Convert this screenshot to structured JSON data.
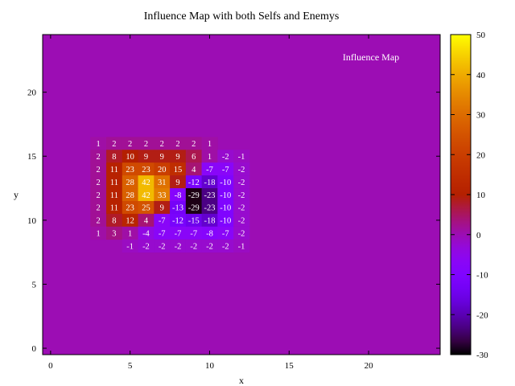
{
  "chart_data": {
    "type": "heatmap",
    "title": "Influence Map with both Selfs and Enemys",
    "xlabel": "x",
    "ylabel": "y",
    "legend_label": "Influence Map",
    "legend_position": "top-right",
    "xlim": [
      -0.5,
      24.5
    ],
    "ylim": [
      -0.5,
      24.5
    ],
    "xticks": [
      0,
      5,
      10,
      15,
      20
    ],
    "yticks": [
      0,
      5,
      10,
      15,
      20
    ],
    "colorbar": {
      "min": -30,
      "max": 50,
      "ticks": [
        50,
        40,
        30,
        20,
        10,
        0,
        -10,
        -20,
        -30
      ]
    },
    "grid": false,
    "background_value": 0,
    "cells": [
      {
        "x": 3,
        "y": 16,
        "v": 1
      },
      {
        "x": 4,
        "y": 16,
        "v": 2
      },
      {
        "x": 5,
        "y": 16,
        "v": 2
      },
      {
        "x": 6,
        "y": 16,
        "v": 2
      },
      {
        "x": 7,
        "y": 16,
        "v": 2
      },
      {
        "x": 8,
        "y": 16,
        "v": 2
      },
      {
        "x": 9,
        "y": 16,
        "v": 2
      },
      {
        "x": 10,
        "y": 16,
        "v": 1
      },
      {
        "x": 3,
        "y": 15,
        "v": 2
      },
      {
        "x": 4,
        "y": 15,
        "v": 8
      },
      {
        "x": 5,
        "y": 15,
        "v": 10
      },
      {
        "x": 6,
        "y": 15,
        "v": 9
      },
      {
        "x": 7,
        "y": 15,
        "v": 9
      },
      {
        "x": 8,
        "y": 15,
        "v": 9
      },
      {
        "x": 9,
        "y": 15,
        "v": 6
      },
      {
        "x": 10,
        "y": 15,
        "v": 1
      },
      {
        "x": 11,
        "y": 15,
        "v": -2
      },
      {
        "x": 12,
        "y": 15,
        "v": -1
      },
      {
        "x": 3,
        "y": 14,
        "v": 2
      },
      {
        "x": 4,
        "y": 14,
        "v": 11
      },
      {
        "x": 5,
        "y": 14,
        "v": 23
      },
      {
        "x": 6,
        "y": 14,
        "v": 23
      },
      {
        "x": 7,
        "y": 14,
        "v": 20
      },
      {
        "x": 8,
        "y": 14,
        "v": 15
      },
      {
        "x": 9,
        "y": 14,
        "v": 4
      },
      {
        "x": 10,
        "y": 14,
        "v": -7
      },
      {
        "x": 11,
        "y": 14,
        "v": -7
      },
      {
        "x": 12,
        "y": 14,
        "v": -2
      },
      {
        "x": 3,
        "y": 13,
        "v": 2
      },
      {
        "x": 4,
        "y": 13,
        "v": 11
      },
      {
        "x": 5,
        "y": 13,
        "v": 28
      },
      {
        "x": 6,
        "y": 13,
        "v": 42
      },
      {
        "x": 7,
        "y": 13,
        "v": 31
      },
      {
        "x": 8,
        "y": 13,
        "v": 9
      },
      {
        "x": 9,
        "y": 13,
        "v": -12
      },
      {
        "x": 10,
        "y": 13,
        "v": -18
      },
      {
        "x": 11,
        "y": 13,
        "v": -10
      },
      {
        "x": 12,
        "y": 13,
        "v": -2
      },
      {
        "x": 3,
        "y": 12,
        "v": 2
      },
      {
        "x": 4,
        "y": 12,
        "v": 11
      },
      {
        "x": 5,
        "y": 12,
        "v": 28
      },
      {
        "x": 6,
        "y": 12,
        "v": 42
      },
      {
        "x": 7,
        "y": 12,
        "v": 33
      },
      {
        "x": 8,
        "y": 12,
        "v": -8
      },
      {
        "x": 9,
        "y": 12,
        "v": -29
      },
      {
        "x": 10,
        "y": 12,
        "v": -23
      },
      {
        "x": 11,
        "y": 12,
        "v": -10
      },
      {
        "x": 12,
        "y": 12,
        "v": -2
      },
      {
        "x": 3,
        "y": 11,
        "v": 2
      },
      {
        "x": 4,
        "y": 11,
        "v": 11
      },
      {
        "x": 5,
        "y": 11,
        "v": 23
      },
      {
        "x": 6,
        "y": 11,
        "v": 25
      },
      {
        "x": 7,
        "y": 11,
        "v": 9
      },
      {
        "x": 8,
        "y": 11,
        "v": -13
      },
      {
        "x": 9,
        "y": 11,
        "v": -29
      },
      {
        "x": 10,
        "y": 11,
        "v": -23
      },
      {
        "x": 11,
        "y": 11,
        "v": -10
      },
      {
        "x": 12,
        "y": 11,
        "v": -2
      },
      {
        "x": 3,
        "y": 10,
        "v": 2
      },
      {
        "x": 4,
        "y": 10,
        "v": 8
      },
      {
        "x": 5,
        "y": 10,
        "v": 12
      },
      {
        "x": 6,
        "y": 10,
        "v": 4
      },
      {
        "x": 7,
        "y": 10,
        "v": -7
      },
      {
        "x": 8,
        "y": 10,
        "v": -12
      },
      {
        "x": 9,
        "y": 10,
        "v": -15
      },
      {
        "x": 10,
        "y": 10,
        "v": -18
      },
      {
        "x": 11,
        "y": 10,
        "v": -10
      },
      {
        "x": 12,
        "y": 10,
        "v": -2
      },
      {
        "x": 3,
        "y": 9,
        "v": 1
      },
      {
        "x": 4,
        "y": 9,
        "v": 3
      },
      {
        "x": 5,
        "y": 9,
        "v": 1
      },
      {
        "x": 6,
        "y": 9,
        "v": -4
      },
      {
        "x": 7,
        "y": 9,
        "v": -7
      },
      {
        "x": 8,
        "y": 9,
        "v": -7
      },
      {
        "x": 9,
        "y": 9,
        "v": -7
      },
      {
        "x": 10,
        "y": 9,
        "v": -8
      },
      {
        "x": 11,
        "y": 9,
        "v": -7
      },
      {
        "x": 12,
        "y": 9,
        "v": -2
      },
      {
        "x": 5,
        "y": 8,
        "v": -1
      },
      {
        "x": 6,
        "y": 8,
        "v": -2
      },
      {
        "x": 7,
        "y": 8,
        "v": -2
      },
      {
        "x": 8,
        "y": 8,
        "v": -2
      },
      {
        "x": 9,
        "y": 8,
        "v": -2
      },
      {
        "x": 10,
        "y": 8,
        "v": -2
      },
      {
        "x": 11,
        "y": 8,
        "v": -2
      },
      {
        "x": 12,
        "y": 8,
        "v": -1
      }
    ]
  }
}
